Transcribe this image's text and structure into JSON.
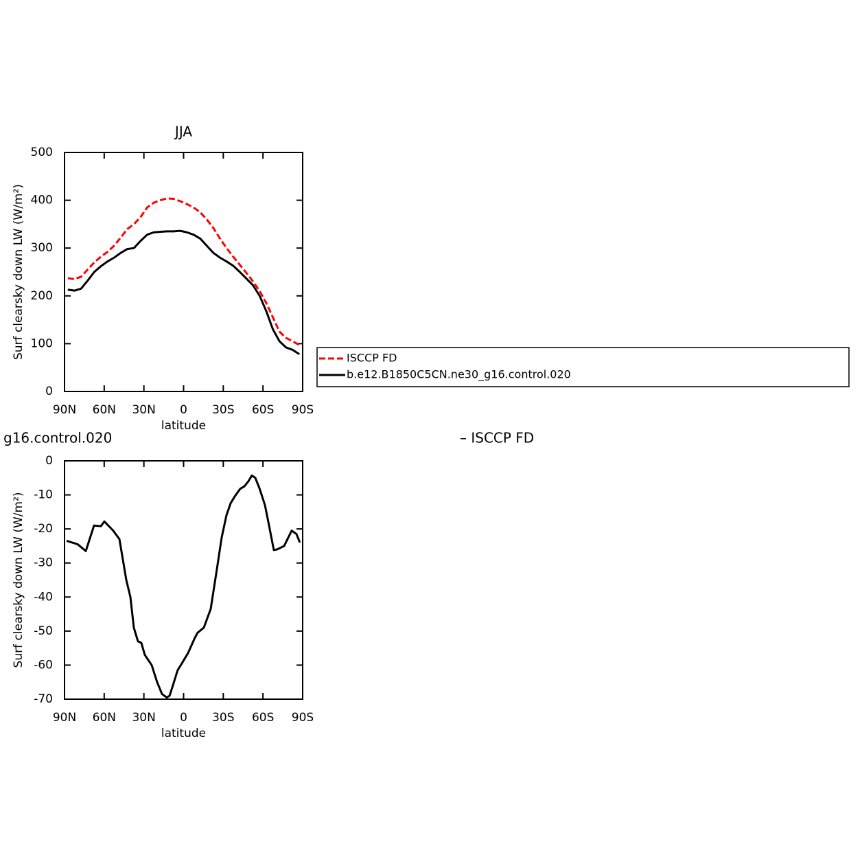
{
  "chart_data": [
    {
      "type": "line",
      "title": "JJA",
      "x_label": "latitude",
      "y_label": "Surf clearsky down LW (W/m²)",
      "x": [
        87.5,
        82.5,
        77.5,
        72.5,
        67.5,
        62.5,
        57.5,
        52.5,
        47.5,
        42.5,
        37.5,
        32.5,
        27.5,
        22.5,
        17.5,
        12.5,
        7.5,
        2.5,
        -2.5,
        -7.5,
        -12.5,
        -17.5,
        -22.5,
        -27.5,
        -32.5,
        -37.5,
        -42.5,
        -47.5,
        -52.5,
        -57.5,
        -62.5,
        -67.5,
        -72.5,
        -77.5,
        -82.5,
        -87.5
      ],
      "series": [
        {
          "name": "ISCCP FD",
          "color": "#ff0000",
          "dashed": true,
          "values": [
            237,
            235,
            240,
            255,
            270,
            282,
            292,
            305,
            322,
            340,
            350,
            365,
            385,
            395,
            400,
            404,
            403,
            398,
            392,
            385,
            375,
            360,
            342,
            320,
            300,
            282,
            265,
            248,
            230,
            210,
            185,
            155,
            125,
            112,
            105,
            97
          ]
        },
        {
          "name": "b.e12.B1850C5CN.ne30_g16.control.020",
          "color": "#000000",
          "dashed": false,
          "values": [
            213,
            211,
            215,
            232,
            250,
            262,
            272,
            280,
            290,
            298,
            300,
            315,
            328,
            333,
            334,
            335,
            335,
            336,
            333,
            328,
            320,
            305,
            290,
            280,
            272,
            263,
            250,
            236,
            222,
            200,
            168,
            130,
            105,
            92,
            87,
            78
          ]
        }
      ],
      "legend": "right",
      "xlim": [
        90,
        -90
      ],
      "xticks": [
        {
          "value": 90,
          "label": "90N"
        },
        {
          "value": 60,
          "label": "60N"
        },
        {
          "value": 30,
          "label": "30N"
        },
        0,
        {
          "value": -30,
          "label": "30S"
        },
        {
          "value": -60,
          "label": "60S"
        },
        {
          "value": -90,
          "label": "90S"
        }
      ],
      "ylim": [
        0,
        500
      ],
      "yticks": [
        0,
        100,
        200,
        300,
        400,
        500
      ]
    },
    {
      "type": "line",
      "title": "g16.control.020",
      "subtitle": "– ISCCP FD",
      "x_label": "latitude",
      "y_label": "Surf clearsky down LW (W/m²)",
      "x": [
        88.4,
        80.1,
        73.9,
        67.7,
        62.5,
        59.9,
        53.2,
        48.5,
        43.3,
        40.2,
        37.6,
        34.5,
        31.9,
        29.3,
        24.1,
        20.0,
        16.3,
        12.7,
        10.6,
        8.1,
        4.5,
        1.3,
        -3.3,
        -8.5,
        -10.6,
        -15.3,
        -20.5,
        -25.1,
        -28.8,
        -32.4,
        -35.5,
        -38.6,
        -42.8,
        -45.9,
        -49.0,
        -51.6,
        -54.2,
        -57.3,
        -61.5,
        -64.6,
        -68.2,
        -70.8,
        -76.0,
        -81.7,
        -85.3,
        -87.9
      ],
      "series": [
        {
          "color": "#000000",
          "dashed": false,
          "values": [
            -23.5,
            -24.5,
            -26.5,
            -19,
            -19.2,
            -17.8,
            -20.5,
            -23,
            -35,
            -40,
            -49,
            -53,
            -53.5,
            -57,
            -60,
            -65,
            -68.5,
            -69.5,
            -69,
            -66,
            -61.5,
            -59.5,
            -56.5,
            -52,
            -50.5,
            -49,
            -43.5,
            -32,
            -22.5,
            -16,
            -12.5,
            -10.5,
            -8.2,
            -7.5,
            -6,
            -4.3,
            -5,
            -8,
            -13,
            -19,
            -26.2,
            -26,
            -25,
            -20.5,
            -21.5,
            -24
          ]
        }
      ],
      "xlim": [
        90,
        -90
      ],
      "xticks": [
        {
          "value": 90,
          "label": "90N"
        },
        {
          "value": 60,
          "label": "60N"
        },
        {
          "value": 30,
          "label": "30N"
        },
        0,
        {
          "value": -30,
          "label": "30S"
        },
        {
          "value": -60,
          "label": "60S"
        },
        {
          "value": -90,
          "label": "90S"
        }
      ],
      "ylim": [
        -70,
        0
      ],
      "yticks": [
        0,
        -10,
        -20,
        -30,
        -40,
        -50,
        -60,
        -70
      ]
    }
  ]
}
